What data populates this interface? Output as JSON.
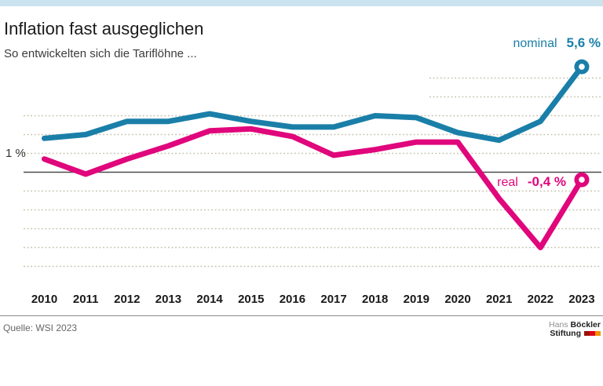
{
  "page": {
    "background": "#ffffff",
    "top_bar_color": "#cbe2ef"
  },
  "header": {
    "title": "Inflation fast ausgeglichen",
    "subtitle": "So entwickelten sich die Tariflöhne ..."
  },
  "chart_data": {
    "type": "line",
    "title": "Inflation fast ausgeglichen",
    "subtitle": "So entwickelten sich die Tariflöhne ...",
    "categories": [
      "2010",
      "2011",
      "2012",
      "2013",
      "2014",
      "2015",
      "2016",
      "2017",
      "2018",
      "2019",
      "2020",
      "2021",
      "2022",
      "2023"
    ],
    "series": [
      {
        "name": "nominal",
        "color": "#1a7fa8",
        "values": [
          1.8,
          2.0,
          2.7,
          2.7,
          3.1,
          2.7,
          2.4,
          2.4,
          3.0,
          2.9,
          2.1,
          1.7,
          2.7,
          5.6
        ],
        "end_value_label": "5,6 %"
      },
      {
        "name": "real",
        "color": "#e0067c",
        "values": [
          0.7,
          -0.1,
          0.7,
          1.4,
          2.2,
          2.3,
          1.9,
          0.9,
          1.2,
          1.6,
          1.6,
          -1.4,
          -4.0,
          -0.4
        ],
        "end_value_label": "-0,4 %"
      }
    ],
    "unit": "%",
    "ylim": [
      -5.5,
      6
    ],
    "y_tick_label": "1 %",
    "y_tick_label_value": 1,
    "gridlines": {
      "values": [
        5,
        4,
        3,
        2,
        1,
        -1,
        -2,
        -3,
        -4,
        -5
      ],
      "style": "dotted",
      "color": "#c6c0ab",
      "short_lines_from_value": 4,
      "zero_line": true,
      "zero_line_color": "#4c4c4c"
    },
    "legend_position": "line-end labels",
    "end_markers": "donut circle on last point of each series"
  },
  "annotations": {
    "y_axis_label": "1 %"
  },
  "footer": {
    "source": "Quelle: WSI 2023",
    "logo": {
      "line1_regular": "Hans",
      "line1_bold": "Böckler",
      "line2_bold": "Stiftung",
      "flag_colors": [
        "#9b1006",
        "#e2001a",
        "#f29400"
      ]
    }
  }
}
